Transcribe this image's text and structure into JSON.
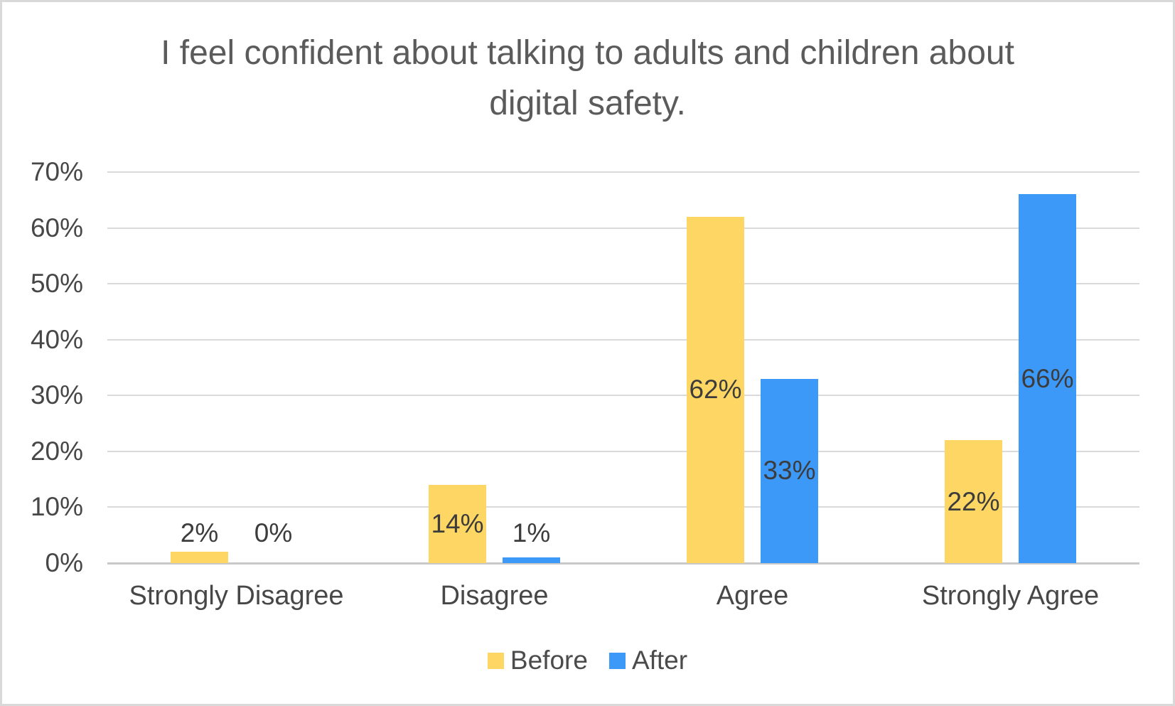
{
  "chart_data": {
    "type": "bar",
    "title": "I feel confident about talking to adults and children about digital safety.",
    "categories": [
      "Strongly Disagree",
      "Disagree",
      "Agree",
      "Strongly Agree"
    ],
    "series": [
      {
        "name": "Before",
        "color": "#FDD663",
        "values": [
          2,
          14,
          62,
          22
        ],
        "data_labels": [
          "2%",
          "14%",
          "62%",
          "22%"
        ]
      },
      {
        "name": "After",
        "color": "#3C99F7",
        "values": [
          0,
          1,
          33,
          66
        ],
        "data_labels": [
          "0%",
          "1%",
          "33%",
          "66%"
        ]
      }
    ],
    "y_axis": {
      "min": 0,
      "max": 70,
      "step": 10,
      "tick_labels": [
        "0%",
        "10%",
        "20%",
        "30%",
        "40%",
        "50%",
        "60%",
        "70%"
      ]
    },
    "grid": true,
    "legend_position": "bottom"
  },
  "colors": {
    "before": "#FDD663",
    "after": "#3C99F7",
    "gridline": "#DADADA",
    "axis_line": "#C9C9C9",
    "title_text": "#5B5B5B",
    "tick_text": "#474747",
    "data_label_text": "#3C3C3C",
    "legend_text": "#4B4B4B",
    "border": "#D9D9D9"
  }
}
